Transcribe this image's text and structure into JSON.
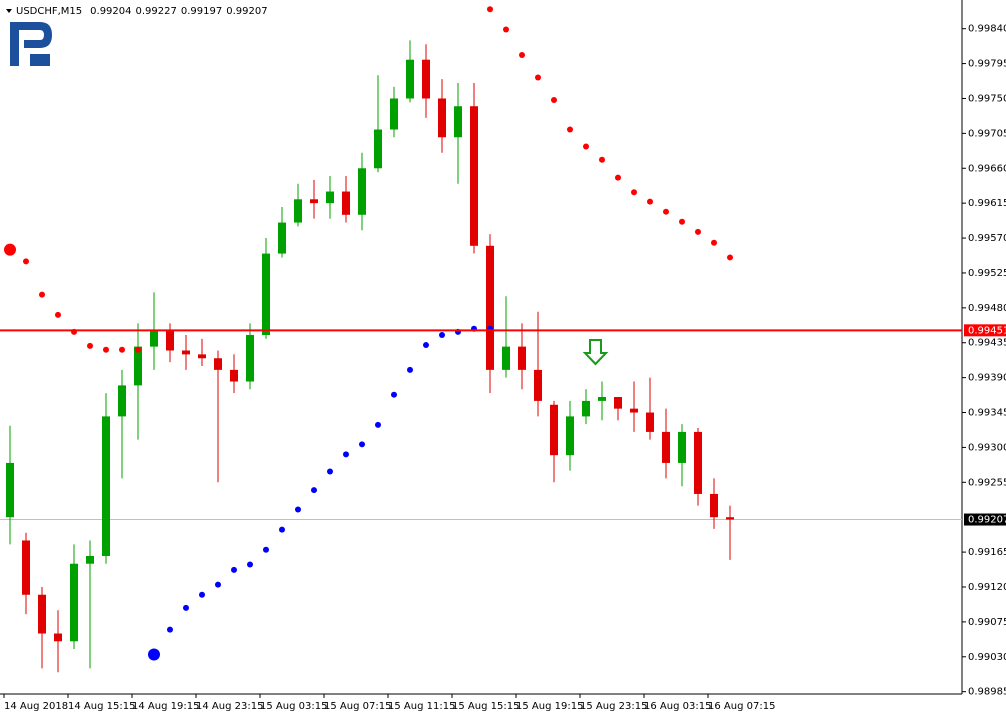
{
  "chart_data": {
    "type": "candlestick",
    "symbol": "USDCHF,M15",
    "quote": [
      0.99204,
      0.99227,
      0.99197,
      0.99207
    ],
    "categories": [
      "14 Aug 2018",
      null,
      null,
      null,
      "14 Aug 15:15",
      null,
      null,
      null,
      "14 Aug 19:15",
      null,
      null,
      null,
      "14 Aug 23:15",
      null,
      null,
      null,
      "15 Aug 03:15",
      null,
      null,
      null,
      "15 Aug 07:15",
      null,
      null,
      null,
      "15 Aug 11:15",
      null,
      null,
      null,
      "15 Aug 15:15",
      null,
      null,
      null,
      "15 Aug 19:15",
      null,
      null,
      null,
      "15 Aug 23:15",
      null,
      null,
      null,
      "16 Aug 03:15",
      null,
      null,
      null,
      "16 Aug 07:15",
      null
    ],
    "open": [
      0.9921,
      0.9918,
      0.9911,
      0.9906,
      0.9905,
      0.9915,
      0.9916,
      0.9934,
      0.9938,
      0.9943,
      0.9945,
      0.99425,
      0.9942,
      0.99415,
      0.994,
      0.99385,
      0.99445,
      0.9955,
      0.9959,
      0.9962,
      0.99615,
      0.9963,
      0.996,
      0.9966,
      0.9971,
      0.9975,
      0.998,
      0.9975,
      0.997,
      0.9974,
      0.9956,
      0.994,
      0.9943,
      0.994,
      0.99355,
      0.9929,
      0.9934,
      0.9936,
      0.99365,
      0.9935,
      0.99345,
      0.9932,
      0.9928,
      0.9932,
      0.9924,
      0.9921
    ],
    "high": [
      0.99328,
      0.9919,
      0.9912,
      0.9909,
      0.99175,
      0.9918,
      0.9937,
      0.994,
      0.9946,
      0.995,
      0.9946,
      0.99445,
      0.9944,
      0.99425,
      0.9942,
      0.9946,
      0.9957,
      0.9961,
      0.9964,
      0.99645,
      0.9965,
      0.9965,
      0.9968,
      0.9978,
      0.99765,
      0.99825,
      0.9982,
      0.99775,
      0.9977,
      0.9977,
      0.99575,
      0.99495,
      0.9946,
      0.99475,
      0.9936,
      0.9936,
      0.99375,
      0.99385,
      0.99365,
      0.99385,
      0.9939,
      0.9935,
      0.9933,
      0.99325,
      0.9926,
      0.99225
    ],
    "low": [
      0.99175,
      0.99085,
      0.99015,
      0.9901,
      0.9904,
      0.99015,
      0.9915,
      0.9926,
      0.9931,
      0.994,
      0.9941,
      0.994,
      0.99405,
      0.99255,
      0.9937,
      0.99375,
      0.9944,
      0.99545,
      0.99585,
      0.99595,
      0.99595,
      0.9959,
      0.9958,
      0.99655,
      0.997,
      0.99745,
      0.99725,
      0.9968,
      0.9964,
      0.9955,
      0.9937,
      0.9939,
      0.99375,
      0.9934,
      0.99255,
      0.9927,
      0.9933,
      0.99335,
      0.99335,
      0.9932,
      0.9931,
      0.9926,
      0.9925,
      0.99225,
      0.99195,
      0.99155
    ],
    "close": [
      0.9928,
      0.9911,
      0.9906,
      0.9905,
      0.9915,
      0.9916,
      0.9934,
      0.9938,
      0.9943,
      0.9945,
      0.99425,
      0.9942,
      0.99415,
      0.994,
      0.99385,
      0.99445,
      0.9955,
      0.9959,
      0.9962,
      0.99615,
      0.9963,
      0.996,
      0.9966,
      0.9971,
      0.9975,
      0.998,
      0.9975,
      0.997,
      0.9974,
      0.9956,
      0.994,
      0.9943,
      0.994,
      0.9936,
      0.9929,
      0.9934,
      0.9936,
      0.99365,
      0.9935,
      0.99345,
      0.9932,
      0.9928,
      0.9932,
      0.9924,
      0.9921,
      0.99207
    ],
    "up_color": "#00a000",
    "down_color": "#e00000",
    "indicators": [
      {
        "color": "#ff0000",
        "values": [
          0.99555,
          0.9954,
          0.99497,
          0.99471,
          0.99449,
          0.99431,
          0.99426,
          0.99426,
          0.99426,
          null,
          null,
          null,
          null,
          null,
          null,
          null,
          null,
          null,
          null,
          null,
          null,
          null,
          null,
          null,
          null,
          null,
          null,
          null,
          null,
          null,
          0.99865,
          0.99839,
          0.99806,
          0.99777,
          0.99748,
          0.9971,
          0.99688,
          0.99671,
          0.99648,
          0.99629,
          0.99617,
          0.99604,
          0.99591,
          0.99578,
          0.99564,
          0.99545
        ]
      },
      {
        "color": "#0000ff",
        "values": [
          null,
          null,
          null,
          null,
          null,
          null,
          null,
          null,
          null,
          0.99033,
          0.99065,
          0.99093,
          0.9911,
          0.99123,
          0.99142,
          0.99149,
          0.99168,
          0.99194,
          0.9922,
          0.99245,
          0.99269,
          0.99291,
          0.99304,
          0.99329,
          0.99368,
          0.994,
          0.99432,
          0.99445,
          0.99449,
          0.99453,
          0.99453,
          null,
          null,
          null,
          null,
          null,
          null,
          null,
          null,
          null,
          null,
          null,
          null,
          null,
          null,
          null
        ]
      }
    ],
    "level": {
      "value": 0.99451,
      "color": "#ff0000"
    },
    "last_price": 0.99207,
    "ylim": [
      0.98982,
      0.99877
    ],
    "yticks": [
      {
        "value": 0.9984,
        "label": "0.99840"
      },
      0.99795,
      {
        "value": 0.9975,
        "label": "0.99750"
      },
      0.99705,
      {
        "value": 0.9966,
        "label": "0.99660"
      },
      0.99615,
      {
        "value": 0.9957,
        "label": "0.99570"
      },
      0.99525,
      {
        "value": 0.9948,
        "label": "0.99480"
      },
      0.99435,
      {
        "value": 0.9939,
        "label": "0.99390"
      },
      0.99345,
      {
        "value": 0.993,
        "label": "0.99300"
      },
      0.99255,
      0.99165,
      {
        "value": 0.9912,
        "label": "0.99120"
      },
      0.99075,
      {
        "value": 0.9903,
        "label": "0.99030"
      },
      0.98985
    ]
  }
}
